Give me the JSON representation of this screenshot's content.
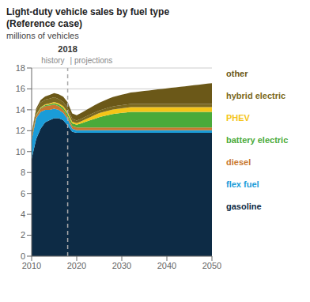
{
  "chart_data": {
    "type": "area",
    "stacked": true,
    "title": "Light-duty vehicle sales by fuel type",
    "subtitle": "(Reference case)",
    "y_label": "millions of vehicles",
    "x": [
      2010,
      2011,
      2012,
      2013,
      2014,
      2015,
      2016,
      2017,
      2018,
      2019,
      2020,
      2021,
      2022,
      2023,
      2024,
      2025,
      2026,
      2027,
      2028,
      2029,
      2030,
      2031,
      2032,
      2033,
      2034,
      2035,
      2036,
      2037,
      2038,
      2039,
      2040,
      2041,
      2042,
      2043,
      2044,
      2045,
      2046,
      2047,
      2048,
      2049,
      2050
    ],
    "series": [
      {
        "name": "gasoline",
        "color": "#0d2b45",
        "values": [
          9.3,
          11.2,
          12.2,
          12.8,
          13.0,
          13.2,
          13.2,
          13.0,
          12.5,
          11.9,
          11.8,
          11.8,
          11.8,
          11.8,
          11.8,
          11.8,
          11.8,
          11.8,
          11.8,
          11.8,
          11.8,
          11.8,
          11.8,
          11.8,
          11.8,
          11.8,
          11.8,
          11.8,
          11.8,
          11.8,
          11.8,
          11.8,
          11.8,
          11.8,
          11.8,
          11.8,
          11.8,
          11.8,
          11.8,
          11.8,
          11.8
        ]
      },
      {
        "name": "flex fuel",
        "color": "#1a9cd8",
        "values": [
          1.8,
          2.0,
          1.6,
          1.2,
          1.0,
          0.9,
          0.8,
          0.7,
          0.6,
          0.3,
          0.25,
          0.25,
          0.25,
          0.25,
          0.25,
          0.25,
          0.25,
          0.25,
          0.25,
          0.25,
          0.25,
          0.25,
          0.25,
          0.25,
          0.25,
          0.25,
          0.25,
          0.25,
          0.25,
          0.25,
          0.25,
          0.25,
          0.25,
          0.25,
          0.25,
          0.25,
          0.25,
          0.25,
          0.25,
          0.25,
          0.25
        ]
      },
      {
        "name": "diesel",
        "color": "#c87830",
        "values": [
          0.2,
          0.25,
          0.3,
          0.35,
          0.4,
          0.4,
          0.35,
          0.3,
          0.25,
          0.25,
          0.25,
          0.25,
          0.25,
          0.25,
          0.25,
          0.25,
          0.25,
          0.25,
          0.25,
          0.25,
          0.25,
          0.25,
          0.25,
          0.25,
          0.25,
          0.25,
          0.25,
          0.25,
          0.25,
          0.25,
          0.25,
          0.25,
          0.25,
          0.25,
          0.25,
          0.25,
          0.25,
          0.25,
          0.25,
          0.25,
          0.25
        ]
      },
      {
        "name": "battery electric",
        "color": "#4aaa3a",
        "values": [
          0.02,
          0.05,
          0.08,
          0.1,
          0.12,
          0.13,
          0.15,
          0.2,
          0.25,
          0.25,
          0.28,
          0.4,
          0.55,
          0.7,
          0.85,
          1.0,
          1.1,
          1.2,
          1.3,
          1.35,
          1.4,
          1.45,
          1.5,
          1.5,
          1.5,
          1.5,
          1.5,
          1.5,
          1.5,
          1.5,
          1.5,
          1.5,
          1.5,
          1.5,
          1.5,
          1.5,
          1.5,
          1.5,
          1.5,
          1.5,
          1.5
        ]
      },
      {
        "name": "PHEV",
        "color": "#f5c518",
        "values": [
          0.01,
          0.03,
          0.06,
          0.08,
          0.1,
          0.12,
          0.12,
          0.15,
          0.18,
          0.15,
          0.15,
          0.2,
          0.25,
          0.3,
          0.35,
          0.38,
          0.4,
          0.42,
          0.43,
          0.44,
          0.45,
          0.45,
          0.45,
          0.45,
          0.45,
          0.45,
          0.45,
          0.45,
          0.45,
          0.45,
          0.45,
          0.45,
          0.45,
          0.45,
          0.45,
          0.45,
          0.45,
          0.45,
          0.45,
          0.45,
          0.45
        ]
      },
      {
        "name": "hybrid electric",
        "color": "#7a6820",
        "values": [
          0.3,
          0.4,
          0.45,
          0.45,
          0.45,
          0.45,
          0.42,
          0.4,
          0.38,
          0.3,
          0.25,
          0.25,
          0.25,
          0.25,
          0.25,
          0.25,
          0.27,
          0.28,
          0.29,
          0.3,
          0.3,
          0.3,
          0.3,
          0.3,
          0.3,
          0.3,
          0.3,
          0.3,
          0.3,
          0.3,
          0.3,
          0.3,
          0.3,
          0.3,
          0.3,
          0.3,
          0.3,
          0.3,
          0.3,
          0.3,
          0.3
        ]
      },
      {
        "name": "other",
        "color": "#6b5818",
        "values": [
          0.15,
          0.2,
          0.25,
          0.3,
          0.35,
          0.4,
          0.45,
          0.5,
          0.55,
          0.5,
          0.5,
          0.55,
          0.6,
          0.65,
          0.7,
          0.75,
          0.8,
          0.85,
          0.9,
          0.95,
          1.0,
          1.05,
          1.1,
          1.15,
          1.2,
          1.25,
          1.3,
          1.35,
          1.4,
          1.45,
          1.5,
          1.55,
          1.6,
          1.65,
          1.7,
          1.75,
          1.8,
          1.85,
          1.9,
          1.95,
          2.0
        ]
      }
    ],
    "reference_lines": [
      {
        "x": 2018,
        "label": "2018"
      }
    ],
    "annotations": [
      "history",
      "| projections"
    ],
    "xlim": [
      2010,
      2050
    ],
    "xticks": [
      2010,
      2020,
      2030,
      2040,
      2050
    ],
    "ylim": [
      0,
      18
    ],
    "yticks": [
      0,
      2,
      4,
      6,
      8,
      10,
      12,
      14,
      16,
      18
    ],
    "grid": true,
    "legend": "right"
  }
}
